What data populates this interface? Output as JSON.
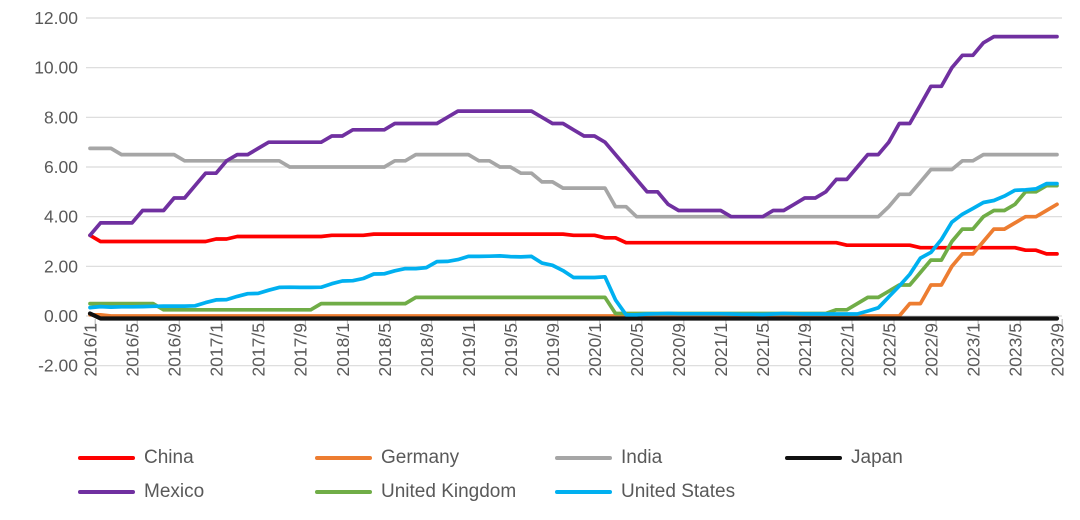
{
  "chart_data": {
    "type": "line",
    "title": "",
    "xlabel": "",
    "ylabel": "",
    "ylim": [
      -2,
      12
    ],
    "ytick_step": 2,
    "yticks": [
      "12.00",
      "10.00",
      "8.00",
      "6.00",
      "4.00",
      "2.00",
      "0.00",
      "-2.00"
    ],
    "x_label_every": 4,
    "grid": "horizontal",
    "legend_position": "bottom",
    "x": [
      "2016/1",
      "2016/2",
      "2016/3",
      "2016/4",
      "2016/5",
      "2016/6",
      "2016/7",
      "2016/8",
      "2016/9",
      "2016/10",
      "2016/11",
      "2016/12",
      "2017/1",
      "2017/2",
      "2017/3",
      "2017/4",
      "2017/5",
      "2017/6",
      "2017/7",
      "2017/8",
      "2017/9",
      "2017/10",
      "2017/11",
      "2017/12",
      "2018/1",
      "2018/2",
      "2018/3",
      "2018/4",
      "2018/5",
      "2018/6",
      "2018/7",
      "2018/8",
      "2018/9",
      "2018/10",
      "2018/11",
      "2018/12",
      "2019/1",
      "2019/2",
      "2019/3",
      "2019/4",
      "2019/5",
      "2019/6",
      "2019/7",
      "2019/8",
      "2019/9",
      "2019/10",
      "2019/11",
      "2019/12",
      "2020/1",
      "2020/2",
      "2020/3",
      "2020/4",
      "2020/5",
      "2020/6",
      "2020/7",
      "2020/8",
      "2020/9",
      "2020/10",
      "2020/11",
      "2020/12",
      "2021/1",
      "2021/2",
      "2021/3",
      "2021/4",
      "2021/5",
      "2021/6",
      "2021/7",
      "2021/8",
      "2021/9",
      "2021/10",
      "2021/11",
      "2021/12",
      "2022/1",
      "2022/2",
      "2022/3",
      "2022/4",
      "2022/5",
      "2022/6",
      "2022/7",
      "2022/8",
      "2022/9",
      "2022/10",
      "2022/11",
      "2022/12",
      "2023/1",
      "2023/2",
      "2023/3",
      "2023/4",
      "2023/5",
      "2023/6",
      "2023/7",
      "2023/8",
      "2023/9"
    ],
    "series": [
      {
        "name": "China",
        "color": "#FE0000",
        "values": [
          3.25,
          3.0,
          3.0,
          3.0,
          3.0,
          3.0,
          3.0,
          3.0,
          3.0,
          3.0,
          3.0,
          3.0,
          3.1,
          3.1,
          3.2,
          3.2,
          3.2,
          3.2,
          3.2,
          3.2,
          3.2,
          3.2,
          3.2,
          3.25,
          3.25,
          3.25,
          3.25,
          3.3,
          3.3,
          3.3,
          3.3,
          3.3,
          3.3,
          3.3,
          3.3,
          3.3,
          3.3,
          3.3,
          3.3,
          3.3,
          3.3,
          3.3,
          3.3,
          3.3,
          3.3,
          3.3,
          3.25,
          3.25,
          3.25,
          3.15,
          3.15,
          2.95,
          2.95,
          2.95,
          2.95,
          2.95,
          2.95,
          2.95,
          2.95,
          2.95,
          2.95,
          2.95,
          2.95,
          2.95,
          2.95,
          2.95,
          2.95,
          2.95,
          2.95,
          2.95,
          2.95,
          2.95,
          2.85,
          2.85,
          2.85,
          2.85,
          2.85,
          2.85,
          2.85,
          2.75,
          2.75,
          2.75,
          2.75,
          2.75,
          2.75,
          2.75,
          2.75,
          2.75,
          2.75,
          2.65,
          2.65,
          2.5,
          2.5
        ]
      },
      {
        "name": "Germany",
        "color": "#ED7D31",
        "values": [
          0.05,
          0.05,
          0,
          0,
          0,
          0,
          0,
          0,
          0,
          0,
          0,
          0,
          0,
          0,
          0,
          0,
          0,
          0,
          0,
          0,
          0,
          0,
          0,
          0,
          0,
          0,
          0,
          0,
          0,
          0,
          0,
          0,
          0,
          0,
          0,
          0,
          0,
          0,
          0,
          0,
          0,
          0,
          0,
          0,
          0,
          0,
          0,
          0,
          0,
          0,
          0,
          0,
          0,
          0,
          0,
          0,
          0,
          0,
          0,
          0,
          0,
          0,
          0,
          0,
          0,
          0,
          0,
          0,
          0,
          0,
          0,
          0,
          0,
          0,
          0,
          0,
          0,
          0,
          0.5,
          0.5,
          1.25,
          1.25,
          2.0,
          2.5,
          2.5,
          3.0,
          3.5,
          3.5,
          3.75,
          4.0,
          4.0,
          4.25,
          4.5
        ]
      },
      {
        "name": "India",
        "color": "#A6A6A6",
        "values": [
          6.75,
          6.75,
          6.75,
          6.5,
          6.5,
          6.5,
          6.5,
          6.5,
          6.5,
          6.25,
          6.25,
          6.25,
          6.25,
          6.25,
          6.25,
          6.25,
          6.25,
          6.25,
          6.25,
          6.0,
          6.0,
          6.0,
          6.0,
          6.0,
          6.0,
          6.0,
          6.0,
          6.0,
          6.0,
          6.25,
          6.25,
          6.5,
          6.5,
          6.5,
          6.5,
          6.5,
          6.5,
          6.25,
          6.25,
          6.0,
          6.0,
          5.75,
          5.75,
          5.4,
          5.4,
          5.15,
          5.15,
          5.15,
          5.15,
          5.15,
          4.4,
          4.4,
          4.0,
          4.0,
          4.0,
          4.0,
          4.0,
          4.0,
          4.0,
          4.0,
          4.0,
          4.0,
          4.0,
          4.0,
          4.0,
          4.0,
          4.0,
          4.0,
          4.0,
          4.0,
          4.0,
          4.0,
          4.0,
          4.0,
          4.0,
          4.0,
          4.4,
          4.9,
          4.9,
          5.4,
          5.9,
          5.9,
          5.9,
          6.25,
          6.25,
          6.5,
          6.5,
          6.5,
          6.5,
          6.5,
          6.5,
          6.5,
          6.5
        ]
      },
      {
        "name": "Japan",
        "color": "#111111",
        "values": [
          0.1,
          -0.1,
          -0.1,
          -0.1,
          -0.1,
          -0.1,
          -0.1,
          -0.1,
          -0.1,
          -0.1,
          -0.1,
          -0.1,
          -0.1,
          -0.1,
          -0.1,
          -0.1,
          -0.1,
          -0.1,
          -0.1,
          -0.1,
          -0.1,
          -0.1,
          -0.1,
          -0.1,
          -0.1,
          -0.1,
          -0.1,
          -0.1,
          -0.1,
          -0.1,
          -0.1,
          -0.1,
          -0.1,
          -0.1,
          -0.1,
          -0.1,
          -0.1,
          -0.1,
          -0.1,
          -0.1,
          -0.1,
          -0.1,
          -0.1,
          -0.1,
          -0.1,
          -0.1,
          -0.1,
          -0.1,
          -0.1,
          -0.1,
          -0.1,
          -0.1,
          -0.1,
          -0.1,
          -0.1,
          -0.1,
          -0.1,
          -0.1,
          -0.1,
          -0.1,
          -0.1,
          -0.1,
          -0.1,
          -0.1,
          -0.1,
          -0.1,
          -0.1,
          -0.1,
          -0.1,
          -0.1,
          -0.1,
          -0.1,
          -0.1,
          -0.1,
          -0.1,
          -0.1,
          -0.1,
          -0.1,
          -0.1,
          -0.1,
          -0.1,
          -0.1,
          -0.1,
          -0.1,
          -0.1,
          -0.1,
          -0.1,
          -0.1,
          -0.1,
          -0.1,
          -0.1,
          -0.1,
          -0.1
        ]
      },
      {
        "name": "Mexico",
        "color": "#7030A0",
        "values": [
          3.25,
          3.75,
          3.75,
          3.75,
          3.75,
          4.25,
          4.25,
          4.25,
          4.75,
          4.75,
          5.25,
          5.75,
          5.75,
          6.25,
          6.5,
          6.5,
          6.75,
          7.0,
          7.0,
          7.0,
          7.0,
          7.0,
          7.0,
          7.25,
          7.25,
          7.5,
          7.5,
          7.5,
          7.5,
          7.75,
          7.75,
          7.75,
          7.75,
          7.75,
          8.0,
          8.25,
          8.25,
          8.25,
          8.25,
          8.25,
          8.25,
          8.25,
          8.25,
          8.0,
          7.75,
          7.75,
          7.5,
          7.25,
          7.25,
          7.0,
          6.5,
          6.0,
          5.5,
          5.0,
          5.0,
          4.5,
          4.25,
          4.25,
          4.25,
          4.25,
          4.25,
          4.0,
          4.0,
          4.0,
          4.0,
          4.25,
          4.25,
          4.5,
          4.75,
          4.75,
          5.0,
          5.5,
          5.5,
          6.0,
          6.5,
          6.5,
          7.0,
          7.75,
          7.75,
          8.5,
          9.25,
          9.25,
          10.0,
          10.5,
          10.5,
          11.0,
          11.25,
          11.25,
          11.25,
          11.25,
          11.25,
          11.25,
          11.25
        ]
      },
      {
        "name": "United Kingdom",
        "color": "#70AD47",
        "values": [
          0.5,
          0.5,
          0.5,
          0.5,
          0.5,
          0.5,
          0.5,
          0.25,
          0.25,
          0.25,
          0.25,
          0.25,
          0.25,
          0.25,
          0.25,
          0.25,
          0.25,
          0.25,
          0.25,
          0.25,
          0.25,
          0.25,
          0.5,
          0.5,
          0.5,
          0.5,
          0.5,
          0.5,
          0.5,
          0.5,
          0.5,
          0.75,
          0.75,
          0.75,
          0.75,
          0.75,
          0.75,
          0.75,
          0.75,
          0.75,
          0.75,
          0.75,
          0.75,
          0.75,
          0.75,
          0.75,
          0.75,
          0.75,
          0.75,
          0.75,
          0.1,
          0.1,
          0.1,
          0.1,
          0.1,
          0.1,
          0.1,
          0.1,
          0.1,
          0.1,
          0.1,
          0.1,
          0.1,
          0.1,
          0.1,
          0.1,
          0.1,
          0.1,
          0.1,
          0.1,
          0.1,
          0.25,
          0.25,
          0.5,
          0.75,
          0.75,
          1.0,
          1.25,
          1.25,
          1.75,
          2.25,
          2.25,
          3.0,
          3.5,
          3.5,
          4.0,
          4.25,
          4.25,
          4.5,
          5.0,
          5.0,
          5.25,
          5.25
        ]
      },
      {
        "name": "United States",
        "color": "#00B0F0",
        "values": [
          0.34,
          0.38,
          0.36,
          0.37,
          0.37,
          0.38,
          0.39,
          0.4,
          0.4,
          0.4,
          0.41,
          0.54,
          0.65,
          0.66,
          0.79,
          0.9,
          0.91,
          1.04,
          1.15,
          1.16,
          1.15,
          1.15,
          1.16,
          1.3,
          1.41,
          1.42,
          1.51,
          1.69,
          1.7,
          1.82,
          1.91,
          1.91,
          1.95,
          2.19,
          2.2,
          2.27,
          2.4,
          2.4,
          2.41,
          2.42,
          2.39,
          2.38,
          2.4,
          2.13,
          2.04,
          1.83,
          1.55,
          1.55,
          1.55,
          1.58,
          0.65,
          0.05,
          0.05,
          0.08,
          0.09,
          0.1,
          0.09,
          0.09,
          0.09,
          0.09,
          0.09,
          0.08,
          0.07,
          0.07,
          0.06,
          0.08,
          0.1,
          0.09,
          0.08,
          0.08,
          0.08,
          0.08,
          0.08,
          0.08,
          0.2,
          0.33,
          0.77,
          1.21,
          1.68,
          2.33,
          2.56,
          3.08,
          3.78,
          4.1,
          4.33,
          4.57,
          4.65,
          4.83,
          5.06,
          5.08,
          5.12,
          5.33,
          5.33
        ]
      }
    ],
    "colors": {
      "gridline": "#D9D9D9",
      "axis_text": "#595959",
      "tick_mark": "#BFBFBF",
      "background": "#FFFFFF"
    }
  },
  "legend": {
    "rows": [
      [
        "China",
        "Germany",
        "India",
        "Japan"
      ],
      [
        "Mexico",
        "United Kingdom",
        "United States"
      ]
    ]
  }
}
